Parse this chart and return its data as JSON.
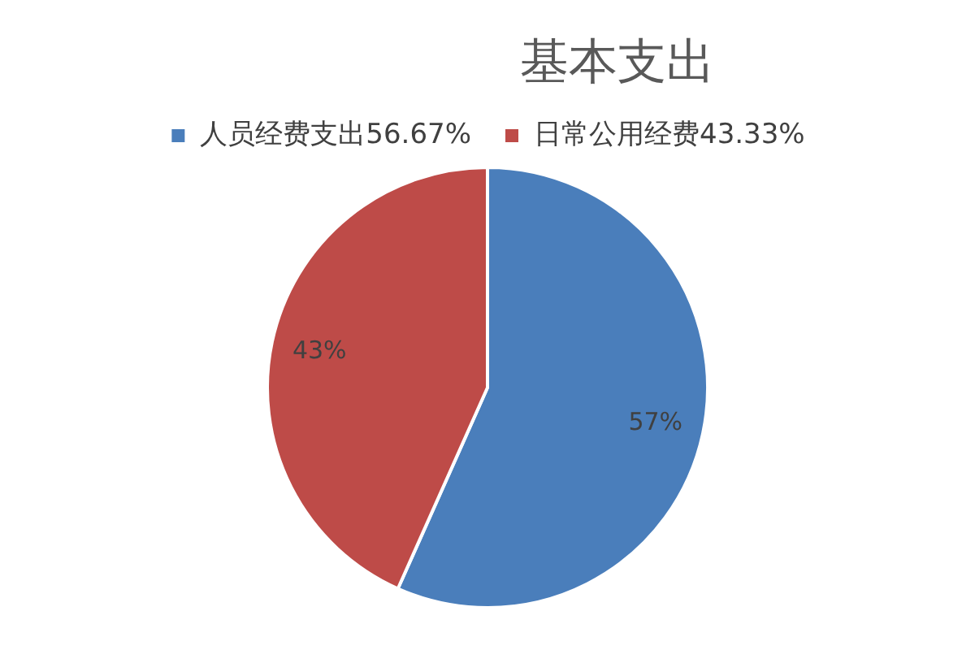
{
  "chart_data": {
    "type": "pie",
    "title": "基本支出",
    "categories": [
      "人员经费支出56.67%",
      "日常公用经费43.33%"
    ],
    "values": [
      56.67,
      43.33
    ],
    "colors": [
      "#4a7ebb",
      "#be4b48"
    ],
    "value_labels": [
      "57%",
      "43%"
    ],
    "legend": "top"
  }
}
